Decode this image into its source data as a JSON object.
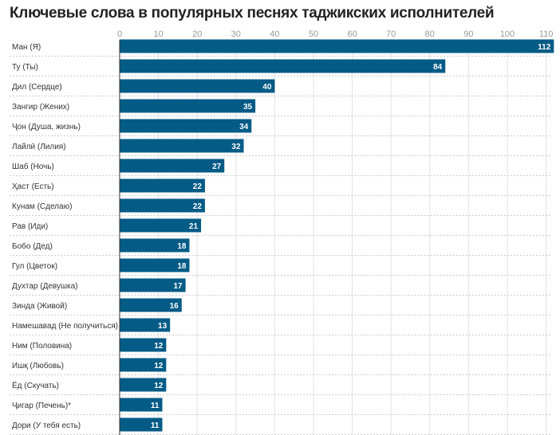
{
  "chart_data": {
    "type": "bar",
    "orientation": "horizontal",
    "title": "Ключевые слова в популярных песнях таджикских исполнителей",
    "categories": [
      "Ман (Я)",
      "Ту (Ты)",
      "Дил (Сердце)",
      "Зангир (Жених)",
      "Ҷон (Душа, жизнь)",
      "Лайлӣ (Лилия)",
      "Шаб (Ночь)",
      "Ҳаст (Есть)",
      "Кунам (Сделаю)",
      "Рав (Иди)",
      "Бобо (Дед)",
      "Гул (Цветок)",
      "Духтар (Девушка)",
      "Зинда (Живой)",
      "Намешавад (Не получиться)",
      "Ним (Половина)",
      "Ишқ (Любовь)",
      "Ёд (Скучать)",
      "Ҷигар (Печень)*",
      "Дори (У тебя есть)"
    ],
    "values": [
      112,
      84,
      40,
      35,
      34,
      32,
      27,
      22,
      22,
      21,
      18,
      18,
      17,
      16,
      13,
      12,
      12,
      12,
      11,
      11
    ],
    "xticks": [
      0,
      10,
      20,
      30,
      40,
      50,
      60,
      70,
      80,
      90,
      100,
      110
    ],
    "xlim": [
      0,
      112
    ],
    "grid": true,
    "bar_color": "#035b86",
    "xlabel": "",
    "ylabel": ""
  }
}
